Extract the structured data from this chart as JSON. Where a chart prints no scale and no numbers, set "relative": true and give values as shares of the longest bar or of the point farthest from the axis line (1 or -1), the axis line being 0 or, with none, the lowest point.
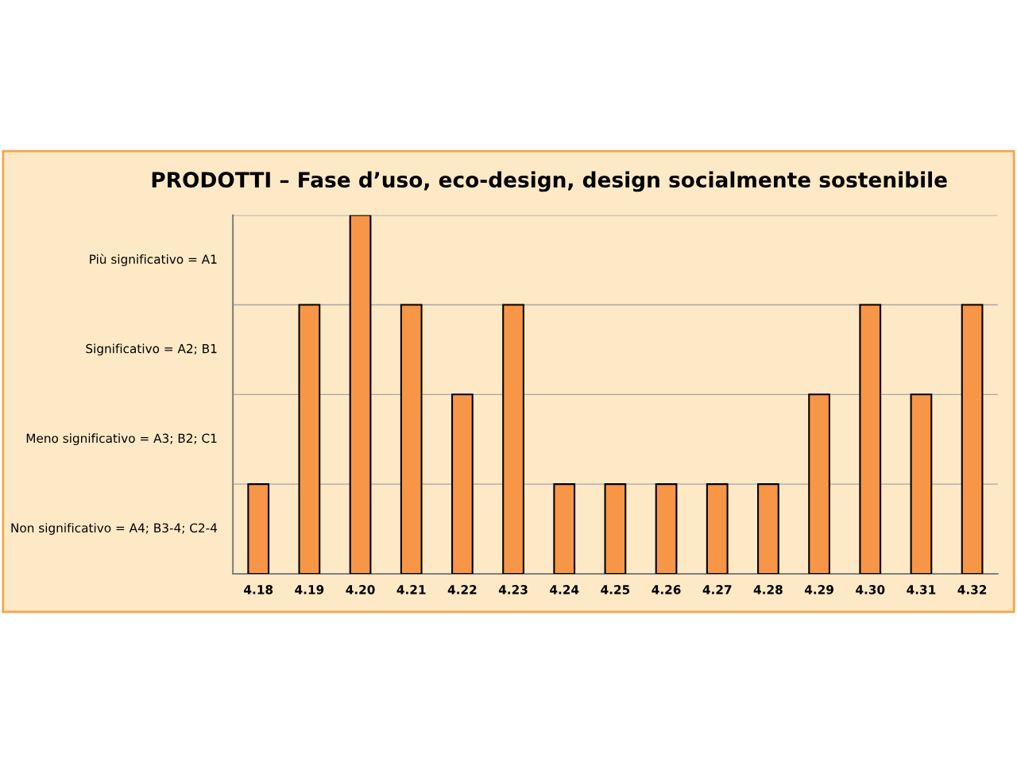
{
  "chart_data": {
    "type": "bar",
    "title": "PRODOTTI – Fase d’uso, eco-design, design socialmente sostenibile",
    "categories": [
      "4.18",
      "4.19",
      "4.20",
      "4.21",
      "4.22",
      "4.23",
      "4.24",
      "4.25",
      "4.26",
      "4.27",
      "4.28",
      "4.29",
      "4.30",
      "4.31",
      "4.32"
    ],
    "values": [
      0.25,
      0.75,
      1,
      0.75,
      0.5,
      0.75,
      0.25,
      0.25,
      0.25,
      0.25,
      0.25,
      0.5,
      0.75,
      0.5,
      0.75
    ],
    "color": "#f79646",
    "relative": true,
    "ref_lines": [
      {
        "axis": "y",
        "value": 0.25,
        "color": "#a6a6a6"
      },
      {
        "axis": "y",
        "value": 0.5,
        "color": "#a6a6a6"
      },
      {
        "axis": "y",
        "value": 0.75,
        "color": "#a6a6a6"
      },
      {
        "axis": "y",
        "value": 1,
        "color": "#a6a6a6"
      }
    ],
    "annotations": [
      "Più significativo = A1",
      "Significativo = A2; B1",
      "Meno significativo = A3; B2; C1",
      "Non significativo = A4; B3-4; C2-4"
    ]
  }
}
